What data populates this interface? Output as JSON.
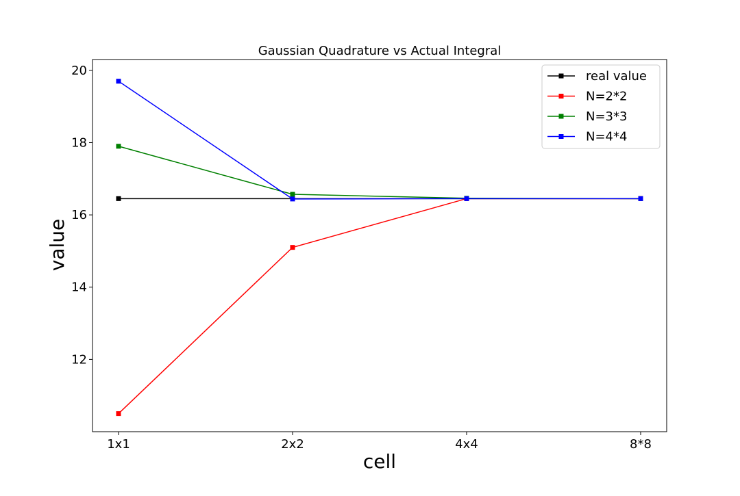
{
  "chart_data": {
    "type": "line",
    "title": "Gaussian Quadrature vs Actual Integral",
    "xlabel": "cell",
    "ylabel": "value",
    "categories": [
      "1x1",
      "2x2",
      "4x4",
      "8*8"
    ],
    "ylim": [
      10.0,
      20.3
    ],
    "yticks": [
      12,
      14,
      16,
      18,
      20
    ],
    "grid": false,
    "legend_position": "top-right",
    "series": [
      {
        "name": "real value",
        "color": "#000000",
        "marker": "square",
        "values": [
          16.45,
          16.45,
          16.45,
          16.45
        ]
      },
      {
        "name": "N=2*2",
        "color": "#ff0000",
        "marker": "square",
        "values": [
          10.5,
          15.1,
          16.45,
          16.45
        ]
      },
      {
        "name": "N=3*3",
        "color": "#008000",
        "marker": "square",
        "values": [
          17.9,
          16.57,
          16.46,
          16.45
        ]
      },
      {
        "name": "N=4*4",
        "color": "#0000ff",
        "marker": "square",
        "values": [
          19.7,
          16.44,
          16.45,
          16.45
        ]
      }
    ]
  }
}
